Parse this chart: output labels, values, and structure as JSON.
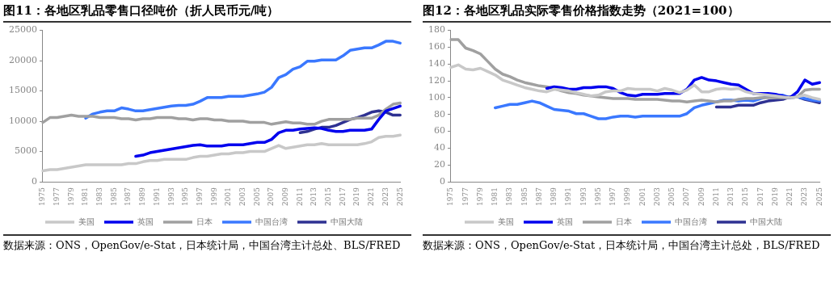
{
  "chart_data": [
    {
      "type": "line",
      "title": "图11：各地区乳品零售口径吨价（折人民币元/吨）",
      "categories": [
        "1975",
        null,
        "1977",
        null,
        "1979",
        null,
        "1981",
        null,
        "1983",
        null,
        "1985",
        null,
        "1987",
        null,
        "1989",
        null,
        "1991",
        null,
        "1993",
        null,
        "1995",
        null,
        "1997",
        null,
        "1999",
        null,
        "2001",
        null,
        "2003",
        null,
        "2005",
        null,
        "2007",
        null,
        "2009",
        null,
        "2011",
        null,
        "2013",
        null,
        "2015",
        null,
        "2017",
        null,
        "2019",
        null,
        "2021",
        null,
        "2023",
        null,
        "2025"
      ],
      "series": [
        {
          "name": "美国",
          "color": "#c8c8c8",
          "values": [
            1800,
            2000,
            2000,
            2200,
            2400,
            2600,
            2800,
            2800,
            2800,
            2800,
            2800,
            2800,
            3000,
            3000,
            3300,
            3500,
            3500,
            3700,
            3700,
            3700,
            3700,
            4000,
            4200,
            4200,
            4400,
            4600,
            4600,
            4800,
            4800,
            5000,
            5000,
            5000,
            5500,
            6000,
            5500,
            5700,
            5900,
            6100,
            6100,
            6300,
            6100,
            6100,
            6100,
            6100,
            6100,
            6300,
            6600,
            7300,
            7500,
            7500,
            7700
          ]
        },
        {
          "name": "英国",
          "color": "#0000ee",
          "values": [
            null,
            null,
            null,
            null,
            null,
            null,
            null,
            null,
            null,
            null,
            null,
            null,
            null,
            4200,
            4400,
            4800,
            5000,
            5200,
            5400,
            5600,
            5800,
            6000,
            6100,
            5900,
            5900,
            5900,
            6100,
            6100,
            6100,
            6300,
            6500,
            6500,
            7000,
            8100,
            8500,
            8500,
            8700,
            8800,
            8900,
            8800,
            8500,
            8300,
            8300,
            8500,
            8500,
            8500,
            8700,
            10300,
            11700,
            12100,
            12500
          ]
        },
        {
          "name": "日本",
          "color": "#a0a0a0",
          "values": [
            9800,
            10600,
            10600,
            10800,
            11000,
            10800,
            10800,
            10800,
            10600,
            10600,
            10600,
            10400,
            10400,
            10200,
            10400,
            10400,
            10600,
            10600,
            10600,
            10400,
            10400,
            10200,
            10400,
            10400,
            10200,
            10200,
            10000,
            10000,
            10000,
            9800,
            9800,
            9800,
            9500,
            9700,
            9900,
            9700,
            9700,
            9500,
            9500,
            10000,
            10300,
            10300,
            10300,
            10300,
            10500,
            10500,
            10500,
            11000,
            12000,
            12800,
            13000
          ]
        },
        {
          "name": "中国台湾",
          "color": "#3a78ff",
          "values": [
            null,
            null,
            null,
            null,
            null,
            null,
            10500,
            11200,
            11500,
            11700,
            11700,
            12200,
            12000,
            11700,
            11700,
            11900,
            12100,
            12300,
            12500,
            12600,
            12600,
            12800,
            13300,
            13900,
            13900,
            13900,
            14100,
            14100,
            14100,
            14300,
            14500,
            14800,
            15600,
            17200,
            17700,
            18600,
            19000,
            19900,
            19900,
            20100,
            20100,
            20100,
            20800,
            21700,
            21900,
            22100,
            22100,
            22600,
            23200,
            23200,
            22900
          ]
        },
        {
          "name": "中国大陆",
          "color": "#2e3192",
          "values": [
            null,
            null,
            null,
            null,
            null,
            null,
            null,
            null,
            null,
            null,
            null,
            null,
            null,
            null,
            null,
            null,
            null,
            null,
            null,
            null,
            null,
            null,
            null,
            null,
            null,
            null,
            null,
            null,
            null,
            null,
            null,
            null,
            null,
            null,
            null,
            null,
            8100,
            8300,
            8700,
            9000,
            9000,
            9300,
            9800,
            10300,
            10600,
            11000,
            11500,
            11700,
            11500,
            11000,
            11000
          ]
        }
      ],
      "ylim": [
        0,
        25000
      ],
      "yticks": [
        0,
        5000,
        10000,
        15000,
        20000,
        25000
      ],
      "grid": false,
      "legend": "bottom",
      "annotations": [
        "数据来源：ONS，OpenGov/e-Stat，日本统计局，中国台湾主计总处、BLS/FRED"
      ]
    },
    {
      "type": "line",
      "title": "图12：各地区乳品实际零售价格指数走势（2021=100）",
      "categories": [
        "1975",
        null,
        "1977",
        null,
        "1979",
        null,
        "1981",
        null,
        "1983",
        null,
        "1985",
        null,
        "1987",
        null,
        "1989",
        null,
        "1991",
        null,
        "1993",
        null,
        "1995",
        null,
        "1997",
        null,
        "1999",
        null,
        "2001",
        null,
        "2003",
        null,
        "2005",
        null,
        "2007",
        null,
        "2009",
        null,
        "2011",
        null,
        "2013",
        null,
        "2015",
        null,
        "2017",
        null,
        "2019",
        null,
        "2021",
        null,
        "2023",
        null,
        "2025"
      ],
      "series": [
        {
          "name": "美国",
          "color": "#c8c8c8",
          "values": [
            136,
            139,
            134,
            133,
            135,
            131,
            127,
            121,
            118,
            115,
            112,
            110,
            108,
            107,
            110,
            109,
            108,
            106,
            104,
            102,
            103,
            107,
            108,
            108,
            111,
            110,
            110,
            110,
            108,
            111,
            109,
            106,
            109,
            115,
            107,
            107,
            110,
            111,
            110,
            111,
            107,
            105,
            104,
            103,
            102,
            101,
            100,
            101,
            103,
            100,
            98
          ]
        },
        {
          "name": "英国",
          "color": "#0000ee",
          "values": [
            null,
            null,
            null,
            null,
            null,
            null,
            null,
            null,
            null,
            null,
            null,
            null,
            null,
            111,
            113,
            112,
            110,
            110,
            112,
            112,
            113,
            113,
            111,
            106,
            103,
            102,
            104,
            104,
            104,
            105,
            105,
            105,
            110,
            121,
            124,
            121,
            120,
            118,
            116,
            115,
            110,
            105,
            105,
            105,
            104,
            102,
            100,
            107,
            121,
            116,
            118
          ]
        },
        {
          "name": "日本",
          "color": "#a0a0a0",
          "values": [
            169,
            169,
            159,
            156,
            152,
            143,
            134,
            128,
            125,
            121,
            118,
            116,
            114,
            113,
            111,
            108,
            106,
            105,
            103,
            102,
            101,
            100,
            99,
            99,
            99,
            98,
            98,
            98,
            98,
            97,
            96,
            96,
            95,
            96,
            97,
            96,
            95,
            96,
            96,
            98,
            99,
            99,
            100,
            100,
            100,
            100,
            100,
            101,
            109,
            110,
            110
          ]
        },
        {
          "name": "中国台湾",
          "color": "#3a78ff",
          "values": [
            null,
            null,
            null,
            null,
            null,
            null,
            88,
            90,
            92,
            92,
            94,
            96,
            94,
            90,
            86,
            85,
            84,
            81,
            81,
            78,
            75,
            75,
            77,
            78,
            78,
            77,
            78,
            78,
            78,
            78,
            78,
            78,
            81,
            88,
            91,
            93,
            95,
            97,
            97,
            96,
            97,
            96,
            99,
            101,
            102,
            103,
            100,
            101,
            99,
            97,
            96
          ]
        },
        {
          "name": "中国大陆",
          "color": "#2e3192",
          "values": [
            null,
            null,
            null,
            null,
            null,
            null,
            null,
            null,
            null,
            null,
            null,
            null,
            null,
            null,
            null,
            null,
            null,
            null,
            null,
            null,
            null,
            null,
            null,
            null,
            null,
            null,
            null,
            null,
            null,
            null,
            null,
            null,
            null,
            null,
            null,
            null,
            89,
            89,
            89,
            91,
            91,
            91,
            94,
            96,
            97,
            98,
            101,
            101,
            98,
            96,
            94
          ]
        }
      ],
      "ylim": [
        0,
        180
      ],
      "yticks": [
        0,
        20,
        40,
        60,
        80,
        100,
        120,
        140,
        160,
        180
      ],
      "grid": false,
      "legend": "bottom",
      "annotations": [
        "数据来源：ONS，OpenGov/e-Stat，日本统计局，中国台湾主计总处，BLS/FRED"
      ]
    }
  ]
}
